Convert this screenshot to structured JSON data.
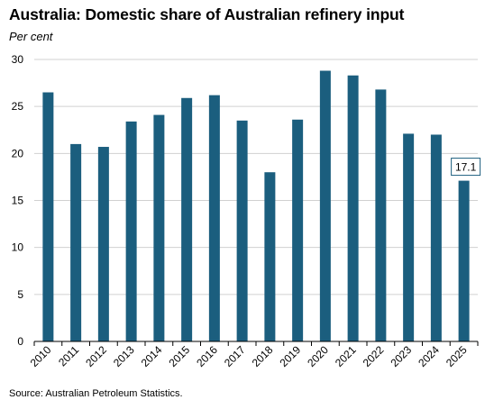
{
  "chart_data": {
    "type": "bar",
    "title": "Australia: Domestic share of Australian refinery input",
    "subtitle": "Per cent",
    "source": "Source: Australian Petroleum Statistics.",
    "categories": [
      "2010",
      "2011",
      "2012",
      "2013",
      "2014",
      "2015",
      "2016",
      "2017",
      "2018",
      "2019",
      "2020",
      "2021",
      "2022",
      "2023",
      "2024",
      "2025"
    ],
    "values": [
      26.5,
      21.0,
      20.7,
      23.4,
      24.1,
      25.9,
      26.2,
      23.5,
      18.0,
      23.6,
      28.8,
      28.3,
      26.8,
      22.1,
      22.0,
      17.1
    ],
    "yticks": [
      "0",
      "5",
      "10",
      "15",
      "20",
      "25",
      "30"
    ],
    "ylim": [
      0,
      30
    ],
    "grid": true,
    "bar_color": "#1b5e7e",
    "callout": {
      "label": "17.1",
      "category": "2025"
    }
  }
}
